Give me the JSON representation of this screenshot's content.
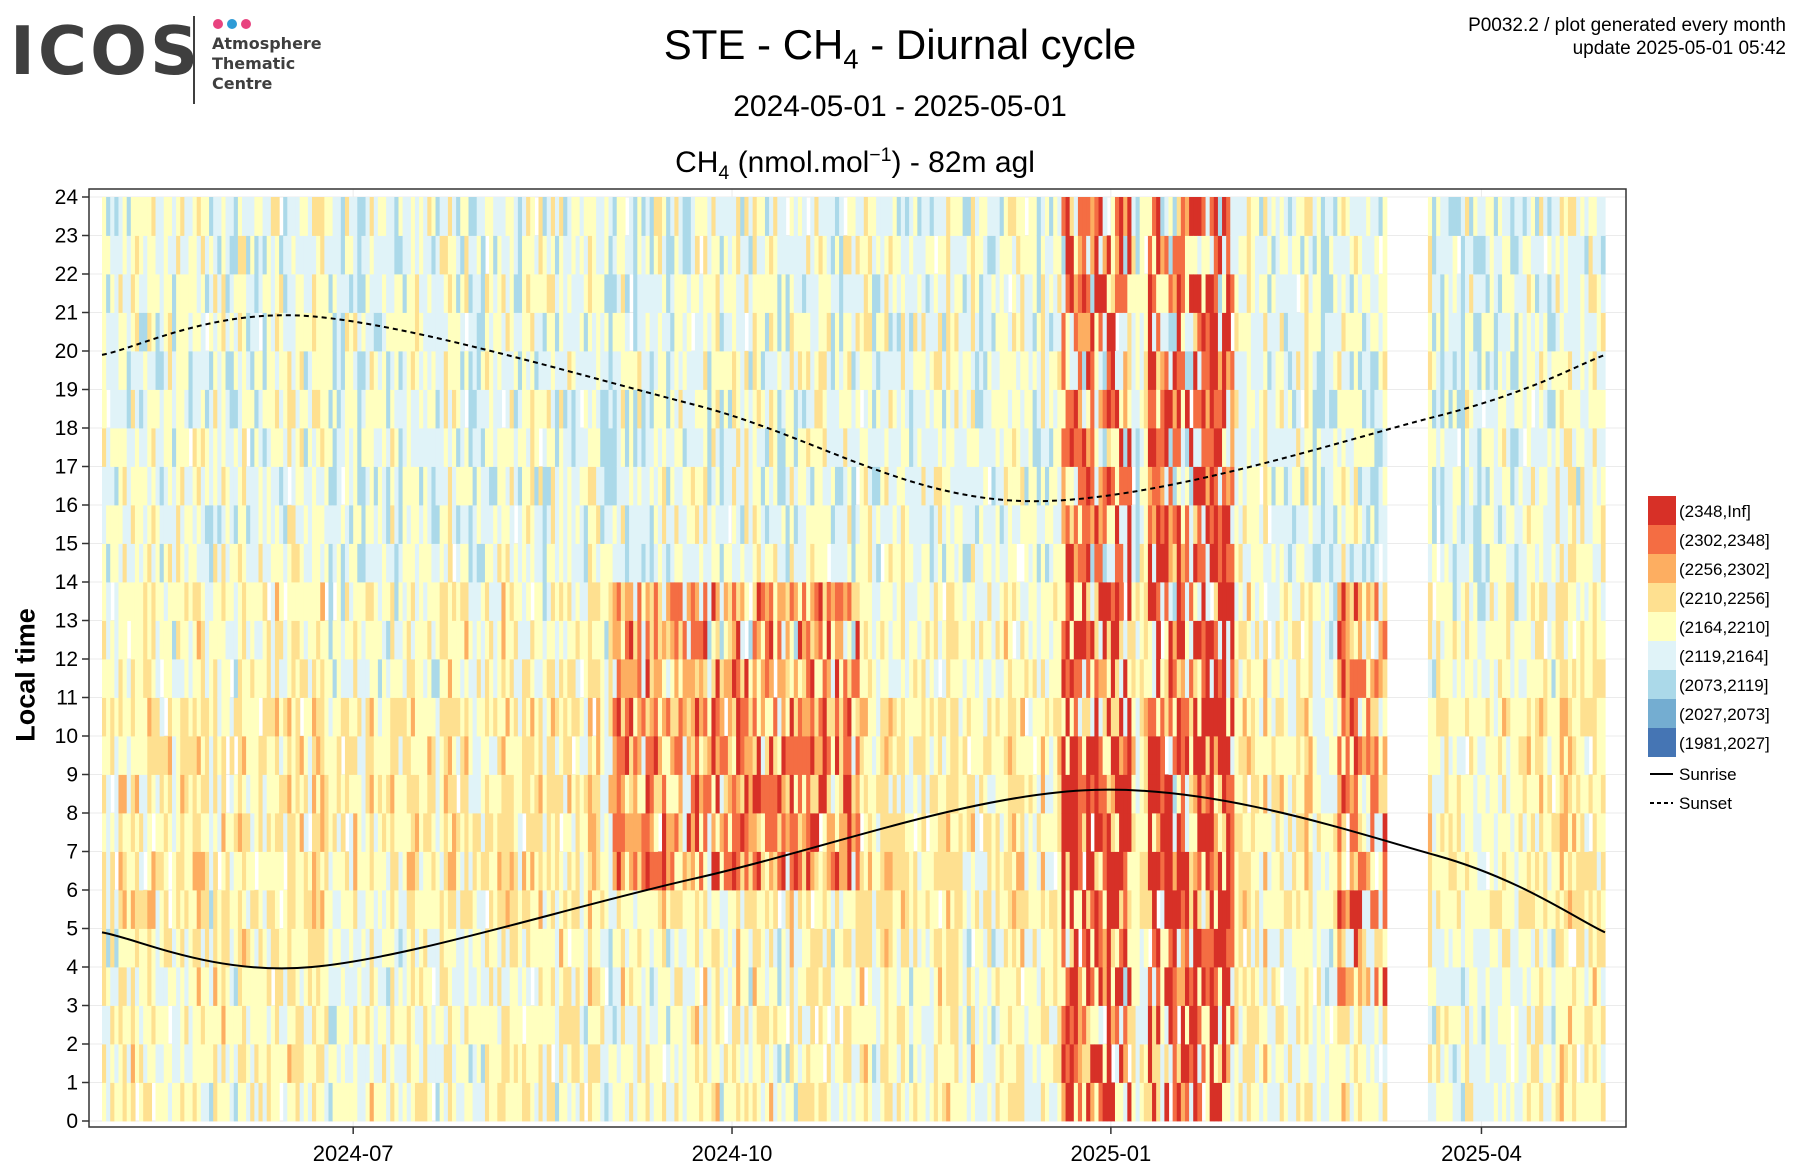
{
  "logo": {
    "wordmark": "ICOS",
    "line1": "Atmosphere",
    "line2": "Thematic",
    "line3": "Centre",
    "dot_colors": [
      "#e8437f",
      "#2e9bd6",
      "#e8437f"
    ]
  },
  "header": {
    "title_prefix": "STE - CH",
    "title_sub": "4",
    "title_suffix": " - Diurnal cycle",
    "period": "2024-05-01 - 2025-05-01",
    "unit_prefix": "CH",
    "unit_sub": "4",
    "unit_mid": " (nmol.mol",
    "unit_sup": "−1",
    "unit_suffix": ") - 82m agl",
    "plot_id": "P0032.2 / plot generated every month",
    "update": "update  2025-05-01 05:42"
  },
  "chart_data": {
    "type": "heatmap",
    "title": "STE - CH4 - Diurnal cycle",
    "subtitle": "2024-05-01 - 2025-05-01",
    "ylabel": "Local time",
    "x_start": "2024-05-01",
    "x_end": "2025-05-01",
    "x_ticks": [
      "2024-07",
      "2024-10",
      "2025-01",
      "2025-04"
    ],
    "y_ticks": [
      "0",
      "1",
      "2",
      "3",
      "4",
      "5",
      "6",
      "7",
      "8",
      "9",
      "10",
      "11",
      "12",
      "13",
      "14",
      "15",
      "16",
      "17",
      "18",
      "19",
      "20",
      "21",
      "22",
      "23",
      "24"
    ],
    "ylim": [
      0,
      24
    ],
    "legend_position": "right",
    "missing_periods": [
      [
        "2025-03-09",
        "2025-03-18"
      ]
    ],
    "bins": [
      {
        "label": "(2348,Inf]",
        "color": "#d73027"
      },
      {
        "label": "(2302,2348]",
        "color": "#f46d43"
      },
      {
        "label": "(2256,2302]",
        "color": "#fdae61"
      },
      {
        "label": "(2210,2256]",
        "color": "#fee090"
      },
      {
        "label": "(2164,2210]",
        "color": "#ffffbf"
      },
      {
        "label": "(2119,2164]",
        "color": "#e0f3f8"
      },
      {
        "label": "(2073,2119]",
        "color": "#abd9e9"
      },
      {
        "label": "(2027,2073]",
        "color": "#74add1"
      },
      {
        "label": "(1981,2027]",
        "color": "#4575b4"
      }
    ],
    "lines": [
      {
        "name": "Sunrise",
        "style": "solid",
        "points": [
          [
            "2024-05-01",
            4.9
          ],
          [
            "2024-06-21",
            4.0
          ],
          [
            "2024-09-22",
            6.3
          ],
          [
            "2024-12-28",
            8.6
          ],
          [
            "2025-03-21",
            6.9
          ],
          [
            "2025-05-01",
            4.9
          ]
        ]
      },
      {
        "name": "Sunset",
        "style": "dashed",
        "points": [
          [
            "2024-05-01",
            19.9
          ],
          [
            "2024-06-21",
            20.9
          ],
          [
            "2024-09-22",
            18.6
          ],
          [
            "2024-12-12",
            16.1
          ],
          [
            "2025-03-21",
            18.3
          ],
          [
            "2025-05-01",
            19.9
          ]
        ]
      }
    ],
    "episodes": [
      {
        "start": "2024-09-01",
        "end": "2024-10-31",
        "hours": [
          6,
          14
        ],
        "level": 2
      },
      {
        "start": "2024-12-20",
        "end": "2025-01-05",
        "hours": [
          0,
          24
        ],
        "level": 3
      },
      {
        "start": "2025-01-10",
        "end": "2025-01-30",
        "hours": [
          0,
          24
        ],
        "level": 3
      },
      {
        "start": "2025-02-25",
        "end": "2025-03-08",
        "hours": [
          3,
          14
        ],
        "level": 2
      }
    ]
  }
}
